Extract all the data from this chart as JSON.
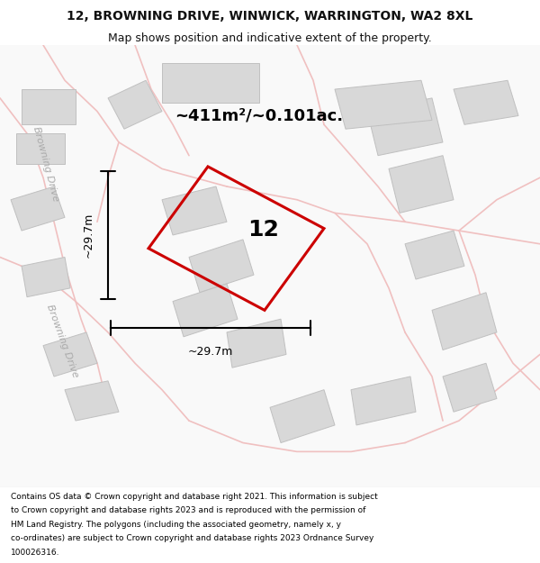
{
  "title_line1": "12, BROWNING DRIVE, WINWICK, WARRINGTON, WA2 8XL",
  "title_line2": "Map shows position and indicative extent of the property.",
  "area_text": "~411m²/~0.101ac.",
  "dim_vertical": "~29.7m",
  "dim_horizontal": "~29.7m",
  "property_number": "12",
  "background_color": "#f5f5f5",
  "road_color": "#f0c0c0",
  "building_color": "#d8d8d8",
  "building_edge_color": "#c0c0c0",
  "highlight_color": "#cc0000",
  "text_color": "#111111",
  "road_label1": "Browning Drive",
  "road_label2": "Browning Drive",
  "footer_lines": [
    "Contains OS data © Crown copyright and database right 2021. This information is subject",
    "to Crown copyright and database rights 2023 and is reproduced with the permission of",
    "HM Land Registry. The polygons (including the associated geometry, namely x, y",
    "co-ordinates) are subject to Crown copyright and database rights 2023 Ordnance Survey",
    "100026316."
  ],
  "map_bg": "#f9f9f9"
}
